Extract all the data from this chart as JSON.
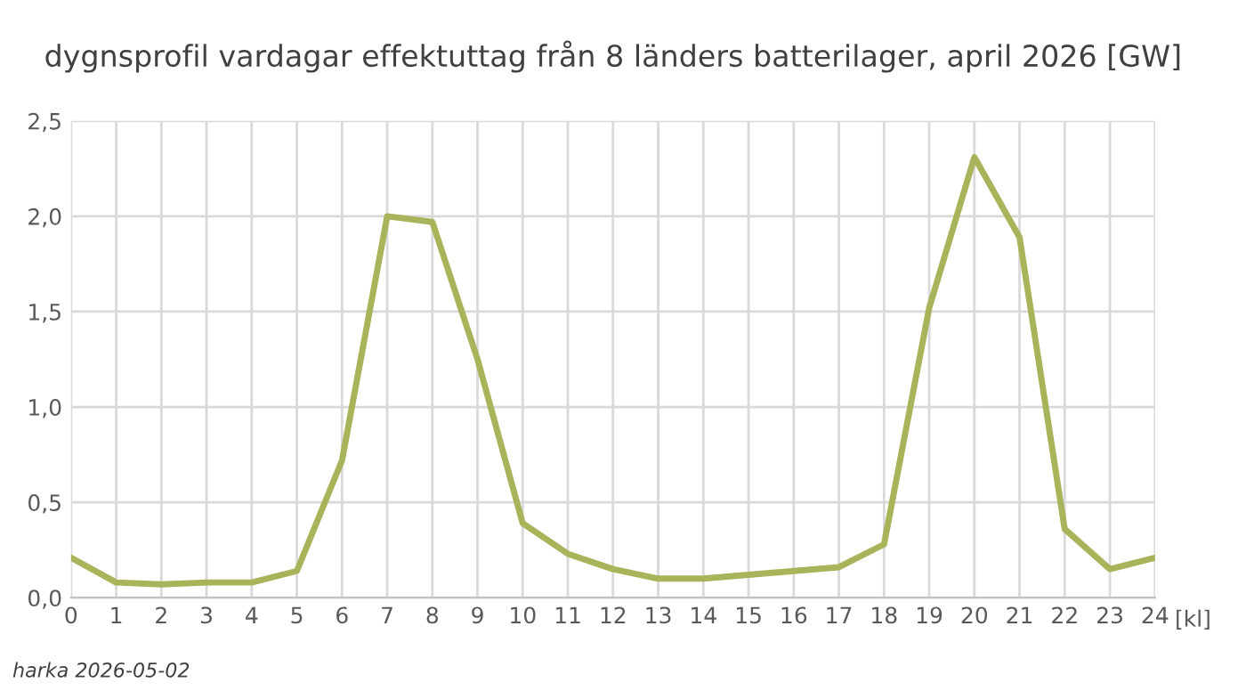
{
  "chart_data": {
    "type": "line",
    "title": "dygnsprofil vardagar effektuttag från 8 länders batterilager, april 2026 [GW]",
    "xlabel": "[kl]",
    "x": [
      0,
      1,
      2,
      3,
      4,
      5,
      6,
      7,
      8,
      9,
      10,
      11,
      12,
      13,
      14,
      15,
      16,
      17,
      18,
      19,
      20,
      21,
      22,
      23,
      24
    ],
    "series": [
      {
        "color": "#a9b35a",
        "values": [
          0.21,
          0.08,
          0.07,
          0.08,
          0.08,
          0.14,
          0.72,
          2.0,
          1.97,
          1.25,
          0.39,
          0.23,
          0.15,
          0.1,
          0.1,
          0.12,
          0.14,
          0.16,
          0.28,
          1.52,
          2.31,
          1.89,
          0.36,
          0.15,
          0.21
        ]
      }
    ],
    "xlim": [
      0,
      24
    ],
    "xticks": [
      0,
      1,
      2,
      3,
      4,
      5,
      6,
      7,
      8,
      9,
      10,
      11,
      12,
      13,
      14,
      15,
      16,
      17,
      18,
      19,
      20,
      21,
      22,
      23,
      24
    ],
    "ylim": [
      0,
      2.5
    ],
    "yticks": [
      {
        "value": 0,
        "label": "0,0"
      },
      {
        "value": 0.5,
        "label": "0,5"
      },
      {
        "value": 1.0,
        "label": "1,0"
      },
      {
        "value": 1.5,
        "label": "1,5"
      },
      {
        "value": 2.0,
        "label": "2,0"
      },
      {
        "value": 2.5,
        "label": "2,5"
      }
    ],
    "grid": true,
    "marker": "none",
    "line_style": "solid",
    "annotations": [
      "harka 2026-05-02"
    ]
  }
}
